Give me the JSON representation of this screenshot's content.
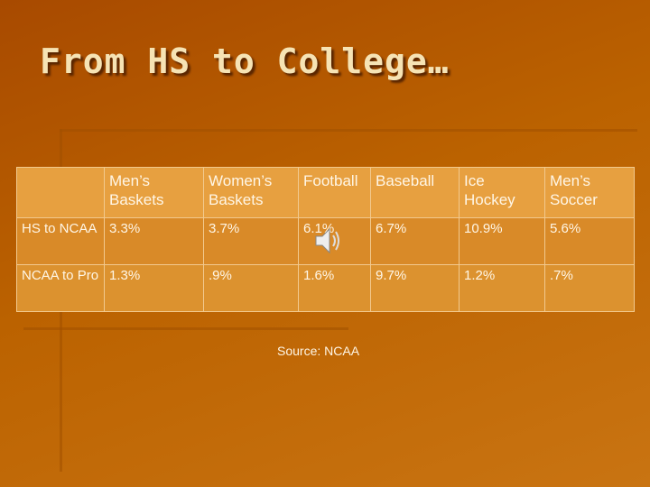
{
  "title": "From HS to College…",
  "table": {
    "header": [
      "",
      "Men’s Baskets",
      "Women’s Baskets",
      "Football",
      "Baseball",
      "Ice Hockey",
      "Men’s Soccer"
    ],
    "rows": [
      [
        "HS to NCAA",
        "3.3%",
        "3.7%",
        "6.1%",
        "6.7%",
        "10.9%",
        "5.6%"
      ],
      [
        "NCAA to Pro",
        "1.3%",
        ".9%",
        "1.6%",
        "9.7%",
        "1.2%",
        ".7%"
      ]
    ]
  },
  "source": "Source: NCAA"
}
